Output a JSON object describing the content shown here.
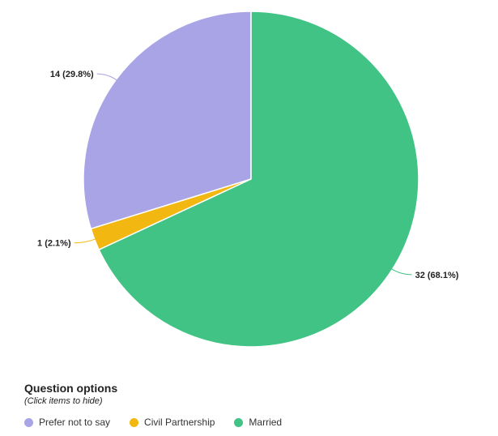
{
  "chart_data": {
    "type": "pie",
    "categories": [
      "Prefer not to say",
      "Civil Partnership",
      "Married"
    ],
    "values": [
      14,
      1,
      32
    ],
    "labels": [
      "14 (29.8%)",
      "1 (2.1%)",
      "32 (68.1%)"
    ],
    "colors": [
      "#a9a4e6",
      "#f2b811",
      "#40c385"
    ],
    "start_angle_deg": 0,
    "direction": "counterclockwise",
    "legend_position": "bottom-left"
  },
  "legend": {
    "title": "Question options",
    "subtitle": "(Click items to hide)",
    "items": [
      {
        "label": "Prefer not to say",
        "color": "#a9a4e6"
      },
      {
        "label": "Civil Partnership",
        "color": "#f2b811"
      },
      {
        "label": "Married",
        "color": "#40c385"
      }
    ]
  }
}
